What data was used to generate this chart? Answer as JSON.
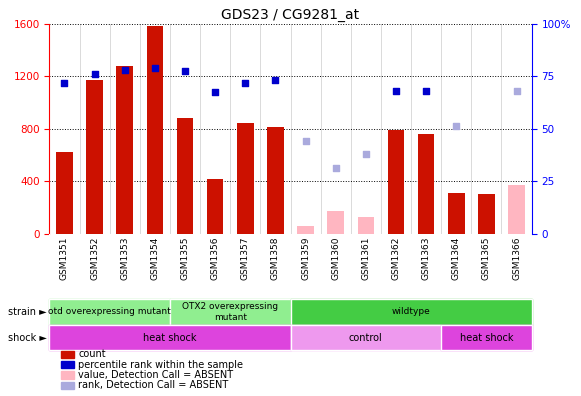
{
  "title": "GDS23 / CG9281_at",
  "samples": [
    "GSM1351",
    "GSM1352",
    "GSM1353",
    "GSM1354",
    "GSM1355",
    "GSM1356",
    "GSM1357",
    "GSM1358",
    "GSM1359",
    "GSM1360",
    "GSM1361",
    "GSM1362",
    "GSM1363",
    "GSM1364",
    "GSM1365",
    "GSM1366"
  ],
  "count_values": [
    620,
    1170,
    1280,
    1580,
    880,
    420,
    840,
    810,
    null,
    null,
    null,
    790,
    760,
    310,
    305,
    null
  ],
  "count_absent": [
    null,
    null,
    null,
    null,
    null,
    null,
    null,
    null,
    55,
    175,
    125,
    null,
    null,
    null,
    null,
    370
  ],
  "rank_values": [
    1150,
    1215,
    1250,
    1260,
    1240,
    1080,
    1150,
    1175,
    null,
    null,
    null,
    1090,
    1085,
    null,
    null,
    null
  ],
  "rank_absent": [
    null,
    null,
    null,
    null,
    null,
    null,
    null,
    null,
    710,
    500,
    610,
    null,
    null,
    820,
    null,
    1090
  ],
  "ylim_left": [
    0,
    1600
  ],
  "ylim_right": [
    0,
    100
  ],
  "left_ticks": [
    0,
    400,
    800,
    1200,
    1600
  ],
  "right_ticks": [
    0,
    25,
    50,
    75,
    100
  ],
  "strain_defs": [
    {
      "start": 0,
      "end": 4,
      "color": "#90EE90",
      "label": "otd overexpressing mutant"
    },
    {
      "start": 4,
      "end": 8,
      "color": "#90EE90",
      "label": "OTX2 overexpressing\nmutant"
    },
    {
      "start": 8,
      "end": 16,
      "color": "#44CC44",
      "label": "wildtype"
    }
  ],
  "shock_defs": [
    {
      "start": 0,
      "end": 8,
      "color": "#DD44DD",
      "label": "heat shock"
    },
    {
      "start": 8,
      "end": 13,
      "color": "#EE99EE",
      "label": "control"
    },
    {
      "start": 13,
      "end": 16,
      "color": "#DD44DD",
      "label": "heat shock"
    }
  ],
  "bar_color_present": "#CC1100",
  "bar_color_absent": "#FFB6C1",
  "dot_color_present": "#0000CC",
  "dot_color_absent": "#AAAADD",
  "bar_width": 0.55,
  "dot_size": 25
}
